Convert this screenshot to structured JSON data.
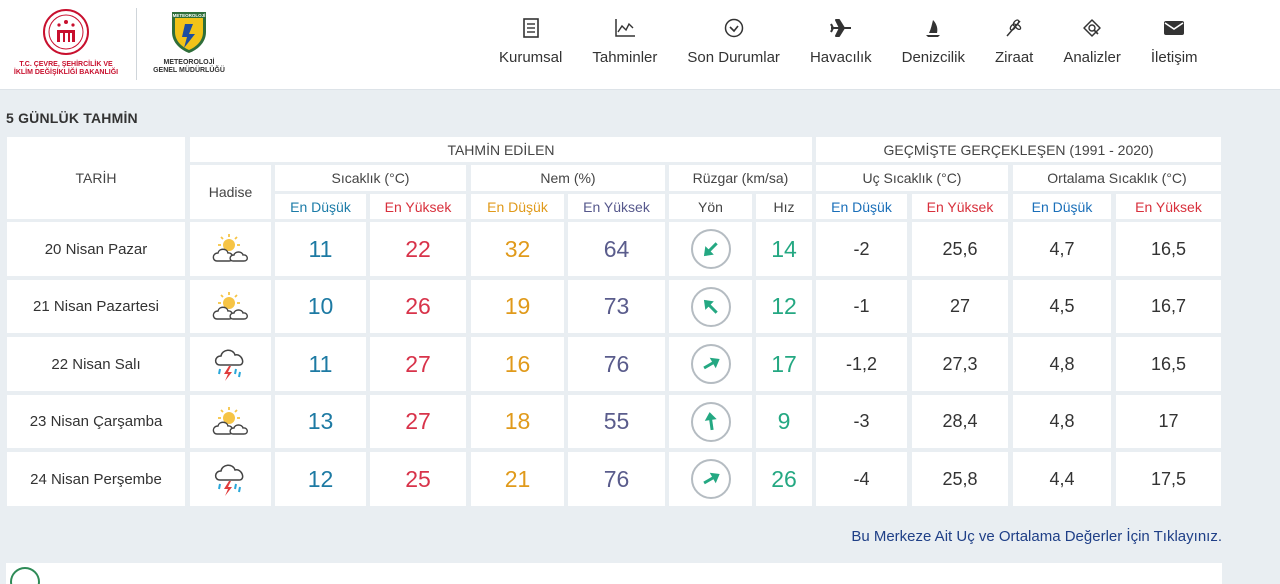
{
  "header": {
    "ministry_logo_line1": "T.C. ÇEVRE, ŞEHİRCİLİK VE",
    "ministry_logo_line2": "İKLİM DEĞİŞİKLİĞİ BAKANLIĞI",
    "mgm_badge": "METEOROLOJİ",
    "mgm_line1": "METEOROLOJİ",
    "mgm_line2": "GENEL MÜDÜRLÜĞÜ",
    "nav": [
      {
        "label": "Kurumsal",
        "icon": "document-icon"
      },
      {
        "label": "Tahminler",
        "icon": "chart-icon"
      },
      {
        "label": "Son Durumlar",
        "icon": "check-circle-icon"
      },
      {
        "label": "Havacılık",
        "icon": "airplane-icon"
      },
      {
        "label": "Denizcilik",
        "icon": "sailboat-icon"
      },
      {
        "label": "Ziraat",
        "icon": "wheat-icon"
      },
      {
        "label": "Analizler",
        "icon": "analysis-icon"
      },
      {
        "label": "İletişim",
        "icon": "envelope-icon"
      }
    ]
  },
  "section_title": "5 GÜNLÜK TAHMİN",
  "table": {
    "group_forecast": "TAHMİN EDİLEN",
    "group_history": "GEÇMİŞTE GERÇEKLEŞEN (1991 - 2020)",
    "col_date": "TARİH",
    "col_event": "Hadise",
    "col_temp": "Sıcaklık (°C)",
    "col_humidity": "Nem (%)",
    "col_wind": "Rüzgar (km/sa)",
    "col_extreme": "Uç Sıcaklık (°C)",
    "col_average": "Ortalama Sıcaklık (°C)",
    "sub_low": "En Düşük",
    "sub_high": "En Yüksek",
    "sub_direction": "Yön",
    "sub_speed": "Hız",
    "rows": [
      {
        "date": "20 Nisan Pazar",
        "icon": "partly-cloudy-icon",
        "temp_low": "11",
        "temp_high": "22",
        "hum_low": "32",
        "hum_high": "64",
        "wind_dir": "sw-arrow-icon",
        "wind_speed": "14",
        "ext_low": "-2",
        "ext_high": "25,6",
        "avg_low": "4,7",
        "avg_high": "16,5"
      },
      {
        "date": "21 Nisan Pazartesi",
        "icon": "partly-cloudy-icon",
        "temp_low": "10",
        "temp_high": "26",
        "hum_low": "19",
        "hum_high": "73",
        "wind_dir": "nw-arrow-icon",
        "wind_speed": "12",
        "ext_low": "-1",
        "ext_high": "27",
        "avg_low": "4,5",
        "avg_high": "16,7"
      },
      {
        "date": "22 Nisan Salı",
        "icon": "thunderstorm-icon",
        "temp_low": "11",
        "temp_high": "27",
        "hum_low": "16",
        "hum_high": "76",
        "wind_dir": "ne-arrow-icon",
        "wind_speed": "17",
        "ext_low": "-1,2",
        "ext_high": "27,3",
        "avg_low": "4,8",
        "avg_high": "16,5"
      },
      {
        "date": "23 Nisan Çarşamba",
        "icon": "partly-cloudy-icon",
        "temp_low": "13",
        "temp_high": "27",
        "hum_low": "18",
        "hum_high": "55",
        "wind_dir": "n-arrow-icon",
        "wind_speed": "9",
        "ext_low": "-3",
        "ext_high": "28,4",
        "avg_low": "4,8",
        "avg_high": "17"
      },
      {
        "date": "24 Nisan Perşembe",
        "icon": "thunderstorm-icon",
        "temp_low": "12",
        "temp_high": "25",
        "hum_low": "21",
        "hum_high": "76",
        "wind_dir": "ne-arrow-icon",
        "wind_speed": "26",
        "ext_low": "-4",
        "ext_high": "25,8",
        "avg_low": "4,4",
        "avg_high": "17,5"
      }
    ]
  },
  "footer_link": "Bu Merkeze Ait Uç ve Ortalama Değerler İçin Tıklayınız.",
  "colors": {
    "low": "#1d7aa3",
    "high": "#d8334a",
    "hum_low": "#e09a1b",
    "hum_high": "#5a5c8c",
    "speed": "#24a882",
    "link": "#1f3f87"
  }
}
